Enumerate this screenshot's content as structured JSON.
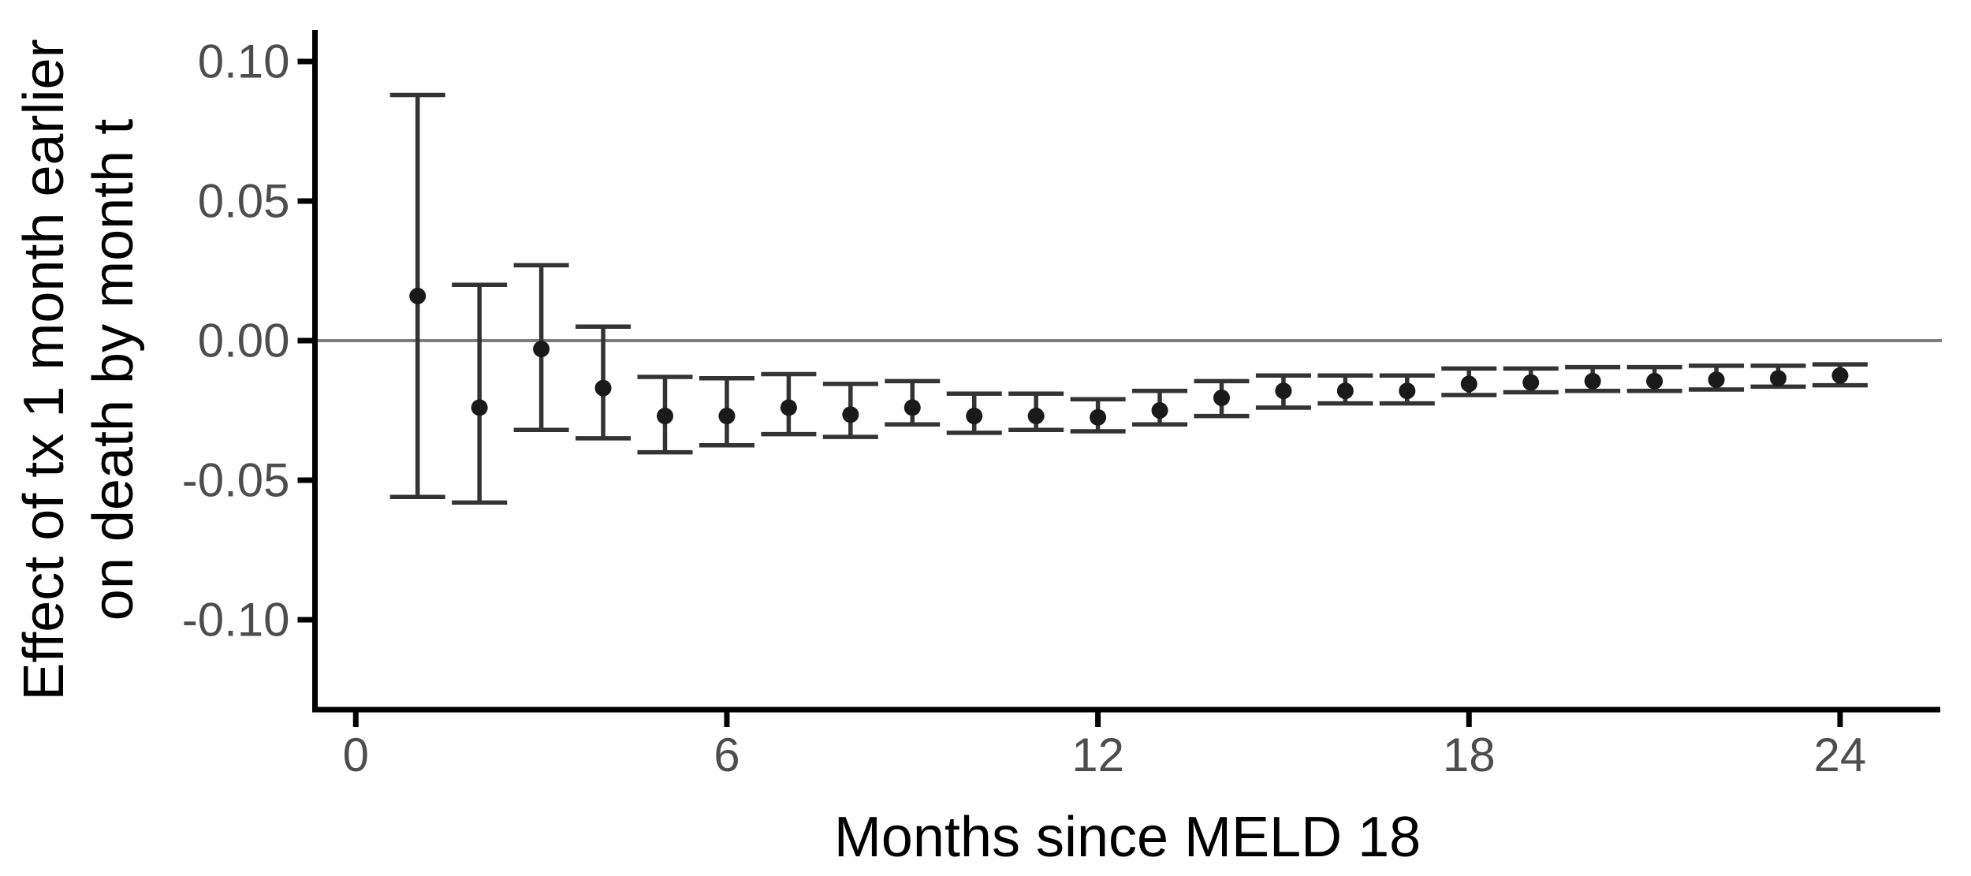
{
  "chart_data": {
    "type": "scatter",
    "title": "",
    "xlabel": "Months since MELD 18",
    "ylabel_line1": "Effect of tx 1 month earlier",
    "ylabel_line2": "on death by month t",
    "x": [
      1,
      2,
      3,
      4,
      5,
      6,
      7,
      8,
      9,
      10,
      11,
      12,
      13,
      14,
      15,
      16,
      17,
      18,
      19,
      20,
      21,
      22,
      23,
      24
    ],
    "y": [
      0.016,
      -0.024,
      -0.003,
      -0.017,
      -0.027,
      -0.027,
      -0.024,
      -0.0265,
      -0.024,
      -0.027,
      -0.027,
      -0.0275,
      -0.025,
      -0.0205,
      -0.018,
      -0.018,
      -0.018,
      -0.0155,
      -0.015,
      -0.0145,
      -0.0145,
      -0.014,
      -0.0135,
      -0.0125
    ],
    "ci_low": [
      -0.056,
      -0.058,
      -0.032,
      -0.035,
      -0.04,
      -0.0375,
      -0.0335,
      -0.0345,
      -0.03,
      -0.033,
      -0.032,
      -0.0325,
      -0.03,
      -0.027,
      -0.024,
      -0.0225,
      -0.0225,
      -0.0195,
      -0.0185,
      -0.018,
      -0.018,
      -0.0175,
      -0.0165,
      -0.016
    ],
    "ci_high": [
      0.088,
      0.02,
      0.027,
      0.005,
      -0.013,
      -0.0135,
      -0.012,
      -0.0155,
      -0.0145,
      -0.019,
      -0.019,
      -0.021,
      -0.018,
      -0.0145,
      -0.0125,
      -0.0125,
      -0.0125,
      -0.01,
      -0.01,
      -0.0095,
      -0.0095,
      -0.009,
      -0.009,
      -0.0085
    ],
    "x_ticks": {
      "values": [
        0,
        6,
        12,
        18,
        24
      ],
      "labels": [
        "0",
        "6",
        "12",
        "18",
        "24"
      ]
    },
    "y_ticks": {
      "values": [
        0.1,
        0.05,
        0.0,
        -0.05,
        -0.1
      ],
      "labels": [
        "0.10",
        "0.05",
        "0.00",
        "-0.05",
        "-0.10"
      ]
    },
    "xlim": [
      -0.66,
      25.62
    ],
    "ylim": [
      -0.1322,
      0.1113
    ],
    "zero_line": true,
    "grid": "off",
    "legend": "none",
    "colors": {
      "point": "#1a1a1a",
      "error_bar": "#333333",
      "axis": "#000000",
      "tick_label": "#4d4d4d",
      "zero_line": "#7d7d7d",
      "background": "#ffffff"
    }
  }
}
